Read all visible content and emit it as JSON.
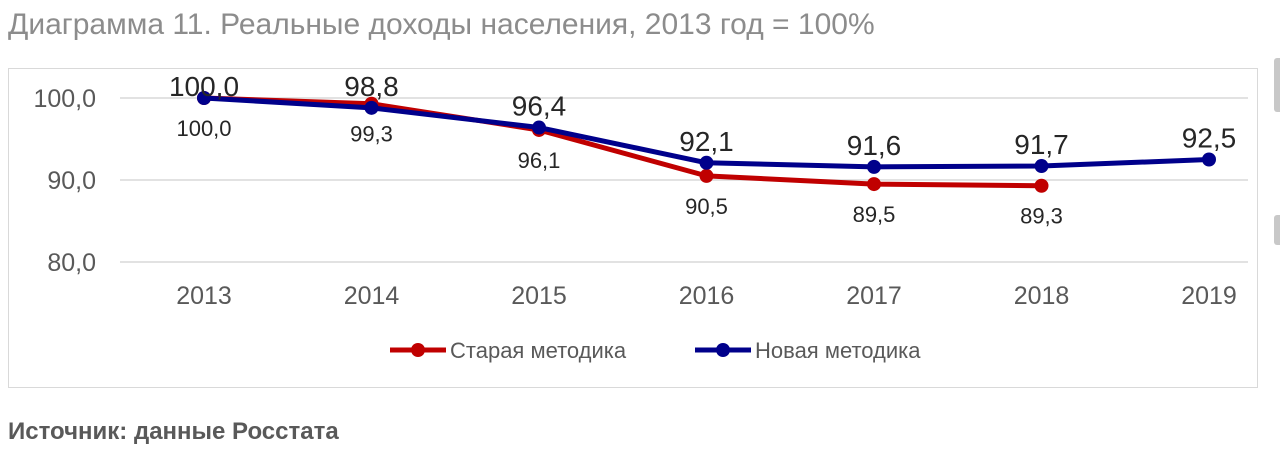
{
  "page": {
    "title": "Диаграмма 11. Реальные доходы населения, 2013 год = 100%",
    "source": "Источник: данные Росстата"
  },
  "chart_data": {
    "type": "line",
    "title": "Диаграмма 11. Реальные доходы населения, 2013 год = 100%",
    "xlabel": "",
    "ylabel": "",
    "categories": [
      "2013",
      "2014",
      "2015",
      "2016",
      "2017",
      "2018",
      "2019"
    ],
    "y_ticks": [
      "100,0",
      "90,0",
      "80,0"
    ],
    "y_tick_values": [
      100,
      90,
      80
    ],
    "ylim": [
      80,
      100
    ],
    "grid": true,
    "legend_position": "bottom",
    "series": [
      {
        "name": "Старая методика",
        "color": "#c00000",
        "values": [
          100.0,
          99.3,
          96.1,
          90.5,
          89.5,
          89.3,
          null
        ],
        "labels": [
          "100,0",
          "99,3",
          "96,1",
          "90,5",
          "89,5",
          "89,3",
          ""
        ],
        "label_position": "below"
      },
      {
        "name": "Новая методика",
        "color": "#00008b",
        "values": [
          100.0,
          98.8,
          96.4,
          92.1,
          91.6,
          91.7,
          92.5
        ],
        "labels": [
          "100,0",
          "98,8",
          "96,4",
          "92,1",
          "91,6",
          "91,7",
          "92,5"
        ],
        "label_position": "above"
      }
    ]
  }
}
